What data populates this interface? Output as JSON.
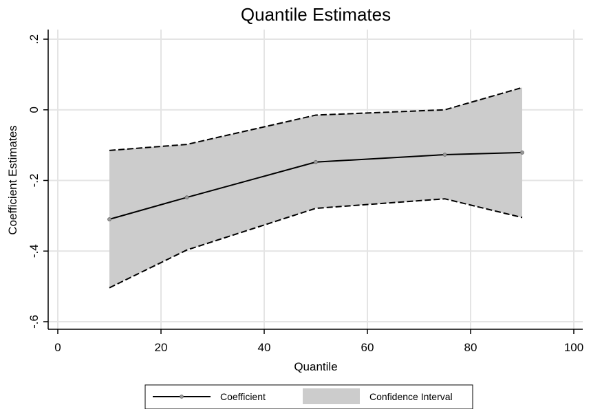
{
  "chart_data": {
    "type": "line",
    "title": "Quantile Estimates",
    "xlabel": "Quantile",
    "ylabel": "Coefficient Estimates",
    "xlim": [
      0,
      100
    ],
    "ylim": [
      -0.6,
      0.2
    ],
    "x_ticks": [
      0,
      20,
      40,
      60,
      80,
      100
    ],
    "x_tick_labels": [
      "0",
      "20",
      "40",
      "60",
      "80",
      "100"
    ],
    "y_ticks": [
      -0.6,
      -0.4,
      -0.2,
      0,
      0.2
    ],
    "y_tick_labels": [
      "-.6",
      "-.4",
      "-.2",
      "0",
      ".2"
    ],
    "grid": true,
    "legend_position": "bottom",
    "x": [
      10,
      25,
      50,
      75,
      90
    ],
    "series": [
      {
        "name": "Coefficient",
        "values": [
          -0.31,
          -0.248,
          -0.148,
          -0.127,
          -0.121
        ],
        "color": "#000000"
      }
    ],
    "confidence_interval": {
      "name": "Confidence Interval",
      "lower": [
        -0.504,
        -0.397,
        -0.279,
        -0.252,
        -0.305
      ],
      "upper": [
        -0.115,
        -0.098,
        -0.015,
        0.0,
        0.063
      ],
      "fill_color": "#cccccc",
      "line_color": "#000000"
    }
  }
}
